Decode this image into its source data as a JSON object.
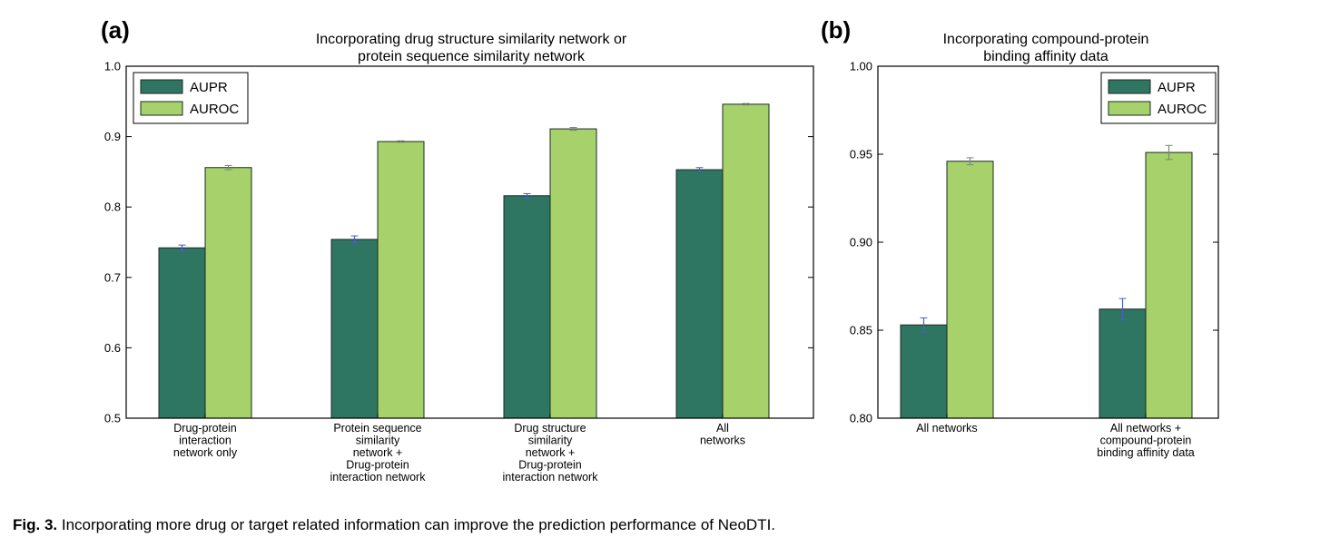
{
  "colors": {
    "aupr": "#2e7562",
    "auroc": "#a7d16a",
    "errorbar": "#4a5fc4",
    "errorbar_auroc": "#7a8a70"
  },
  "chart_data": [
    {
      "panel_label": "(a)",
      "type": "bar",
      "title_lines": [
        "Incorporating drug structure similarity network or",
        "protein sequence similarity network"
      ],
      "ylim": [
        0.5,
        1.0
      ],
      "yticks": [
        "0.5",
        "0.6",
        "0.7",
        "0.8",
        "0.9",
        "1.0"
      ],
      "ytick_values": [
        0.5,
        0.6,
        0.7,
        0.8,
        0.9,
        1.0
      ],
      "categories": [
        [
          "Drug-protein",
          "interaction",
          "network only"
        ],
        [
          "Protein sequence",
          "similarity",
          "network +",
          "Drug-protein",
          "interaction network"
        ],
        [
          "Drug structure",
          "similarity",
          "network +",
          "Drug-protein",
          "interaction network"
        ],
        [
          "All",
          "networks"
        ]
      ],
      "series": [
        {
          "name": "AUPR",
          "values": [
            0.742,
            0.754,
            0.816,
            0.853
          ],
          "errors": [
            0.004,
            0.005,
            0.003,
            0.003
          ]
        },
        {
          "name": "AUROC",
          "values": [
            0.856,
            0.893,
            0.911,
            0.946
          ],
          "errors": [
            0.003,
            0.001,
            0.002,
            0.001
          ]
        }
      ],
      "legend": "top-left",
      "grid": false
    },
    {
      "panel_label": "(b)",
      "type": "bar",
      "title_lines": [
        "Incorporating compound-protein",
        "binding affinity data"
      ],
      "ylim": [
        0.8,
        1.0
      ],
      "yticks": [
        "0.80",
        "0.85",
        "0.90",
        "0.95",
        "1.00"
      ],
      "ytick_values": [
        0.8,
        0.85,
        0.9,
        0.95,
        1.0
      ],
      "categories": [
        [
          "All networks"
        ],
        [
          "All networks +",
          "compound-protein",
          "binding affinity data"
        ]
      ],
      "series": [
        {
          "name": "AUPR",
          "values": [
            0.853,
            0.862
          ],
          "errors": [
            0.004,
            0.006
          ]
        },
        {
          "name": "AUROC",
          "values": [
            0.946,
            0.951
          ],
          "errors": [
            0.002,
            0.004
          ]
        }
      ],
      "legend": "top-right",
      "grid": false
    }
  ],
  "caption": {
    "label": "Fig. 3.",
    "text": " Incorporating more drug or target related information can improve the prediction performance of NeoDTI."
  }
}
